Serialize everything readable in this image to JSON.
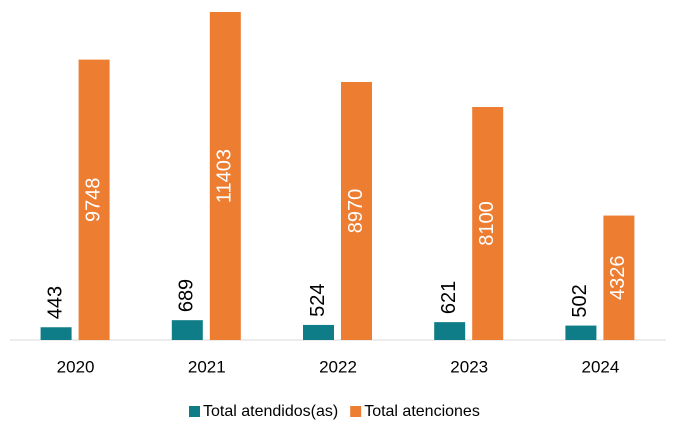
{
  "chart_data": {
    "type": "bar",
    "categories": [
      "2020",
      "2021",
      "2022",
      "2023",
      "2024"
    ],
    "series": [
      {
        "name": "Total atendidos(as)",
        "color": "#0f7d87",
        "values": [
          443,
          689,
          524,
          621,
          502
        ]
      },
      {
        "name": "Total atenciones",
        "color": "#ed7d31",
        "values": [
          9748,
          11403,
          8970,
          8100,
          4326
        ]
      }
    ]
  }
}
